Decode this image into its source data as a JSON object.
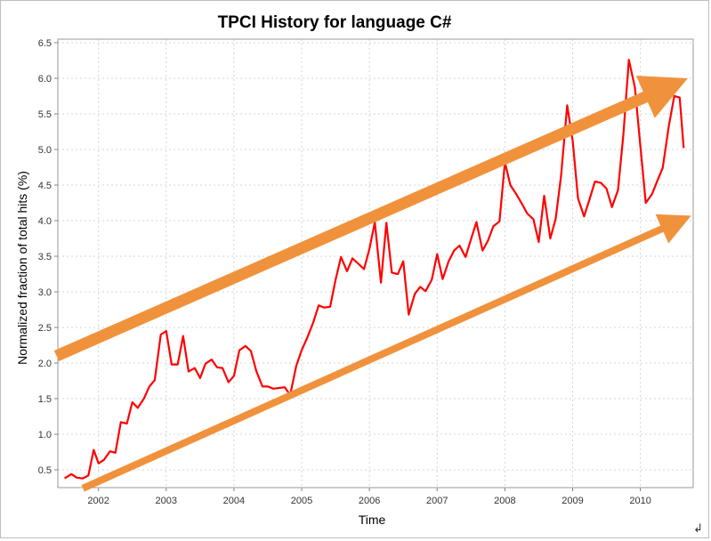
{
  "chart_data": {
    "type": "line",
    "title": "TPCI History for language C#",
    "xlabel": "Time",
    "ylabel": "Normalized fraction of total hits (%)",
    "xlim": [
      2001.4,
      2010.78
    ],
    "ylim": [
      0.25,
      6.55
    ],
    "x_ticks": [
      "2002",
      "2003",
      "2004",
      "2005",
      "2006",
      "2007",
      "2008",
      "2009",
      "2010"
    ],
    "y_ticks": [
      "0.5",
      "1.0",
      "1.5",
      "2.0",
      "2.5",
      "3.0",
      "3.5",
      "4.0",
      "4.5",
      "5.0",
      "5.5",
      "6.0",
      "6.5"
    ],
    "grid": true,
    "series": [
      {
        "name": "C#",
        "color": "#ff0000",
        "x": [
          2001.5,
          2001.6,
          2001.68,
          2001.77,
          2001.85,
          2001.93,
          2002.0,
          2002.08,
          2002.17,
          2002.25,
          2002.33,
          2002.42,
          2002.5,
          2002.58,
          2002.67,
          2002.75,
          2002.83,
          2002.92,
          2003.0,
          2003.08,
          2003.17,
          2003.25,
          2003.33,
          2003.42,
          2003.5,
          2003.58,
          2003.67,
          2003.75,
          2003.83,
          2003.92,
          2004.0,
          2004.08,
          2004.17,
          2004.25,
          2004.33,
          2004.42,
          2004.5,
          2004.58,
          2004.67,
          2004.75,
          2004.83,
          2004.92,
          2005.0,
          2005.08,
          2005.17,
          2005.25,
          2005.33,
          2005.42,
          2005.5,
          2005.58,
          2005.67,
          2005.75,
          2005.83,
          2005.92,
          2006.0,
          2006.08,
          2006.17,
          2006.25,
          2006.33,
          2006.42,
          2006.5,
          2006.58,
          2006.67,
          2006.75,
          2006.83,
          2006.92,
          2007.0,
          2007.08,
          2007.17,
          2007.25,
          2007.33,
          2007.42,
          2007.5,
          2007.58,
          2007.67,
          2007.75,
          2007.83,
          2007.92,
          2008.0,
          2008.08,
          2008.17,
          2008.25,
          2008.33,
          2008.42,
          2008.5,
          2008.58,
          2008.67,
          2008.75,
          2008.83,
          2008.92,
          2009.0,
          2009.08,
          2009.17,
          2009.25,
          2009.33,
          2009.42,
          2009.5,
          2009.58,
          2009.67,
          2009.75,
          2009.83,
          2009.92,
          2010.0,
          2010.08,
          2010.17,
          2010.25,
          2010.33,
          2010.42,
          2010.5,
          2010.58,
          2010.64
        ],
        "values": [
          0.38,
          0.44,
          0.39,
          0.38,
          0.42,
          0.78,
          0.59,
          0.64,
          0.76,
          0.74,
          1.17,
          1.15,
          1.45,
          1.37,
          1.5,
          1.67,
          1.76,
          2.4,
          2.45,
          1.98,
          1.98,
          2.38,
          1.88,
          1.93,
          1.79,
          1.99,
          2.05,
          1.94,
          1.93,
          1.73,
          1.82,
          2.18,
          2.24,
          2.17,
          1.89,
          1.67,
          1.67,
          1.64,
          1.65,
          1.66,
          1.55,
          1.96,
          2.18,
          2.35,
          2.57,
          2.81,
          2.78,
          2.79,
          3.17,
          3.49,
          3.29,
          3.47,
          3.4,
          3.32,
          3.6,
          3.98,
          3.13,
          3.97,
          3.27,
          3.25,
          3.43,
          2.68,
          2.97,
          3.07,
          3.01,
          3.17,
          3.53,
          3.18,
          3.43,
          3.58,
          3.65,
          3.49,
          3.74,
          3.98,
          3.58,
          3.72,
          3.92,
          3.99,
          4.82,
          4.5,
          4.37,
          4.24,
          4.1,
          4.02,
          3.7,
          4.35,
          3.75,
          4.03,
          4.64,
          5.62,
          5.13,
          4.31,
          4.06,
          4.3,
          4.55,
          4.53,
          4.45,
          4.19,
          4.43,
          5.22,
          6.26,
          5.87,
          5.05,
          4.25,
          4.37,
          4.56,
          4.74,
          5.33,
          5.75,
          5.73,
          5.02
        ]
      }
    ],
    "annotations": [
      {
        "type": "arrow",
        "color": "#f0923c",
        "from": [
          2001.38,
          2.1
        ],
        "to": [
          2010.7,
          6.0
        ]
      },
      {
        "type": "arrow",
        "color": "#f0923c",
        "from": [
          2001.77,
          0.24
        ],
        "to": [
          2010.75,
          4.07
        ]
      }
    ]
  }
}
